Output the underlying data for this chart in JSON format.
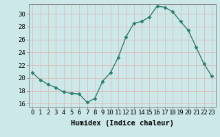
{
  "x": [
    0,
    1,
    2,
    3,
    4,
    5,
    6,
    7,
    8,
    9,
    10,
    11,
    12,
    13,
    14,
    15,
    16,
    17,
    18,
    19,
    20,
    21,
    22,
    23
  ],
  "y": [
    20.8,
    19.7,
    19.0,
    18.5,
    17.8,
    17.6,
    17.5,
    16.2,
    16.8,
    19.5,
    20.8,
    23.2,
    26.4,
    28.5,
    28.8,
    29.5,
    31.2,
    31.0,
    30.3,
    28.8,
    27.4,
    24.8,
    22.2,
    20.3
  ],
  "line_color": "#2e7d6e",
  "marker": "D",
  "markersize": 2.5,
  "linewidth": 1.0,
  "bg_color": "#cce8e8",
  "grid_color": "#ddbbbb",
  "xlabel": "Humidex (Indice chaleur)",
  "xlim": [
    -0.5,
    23.5
  ],
  "ylim": [
    15.5,
    31.5
  ],
  "yticks": [
    16,
    18,
    20,
    22,
    24,
    26,
    28,
    30
  ],
  "xticks": [
    0,
    1,
    2,
    3,
    4,
    5,
    6,
    7,
    8,
    9,
    10,
    11,
    12,
    13,
    14,
    15,
    16,
    17,
    18,
    19,
    20,
    21,
    22,
    23
  ],
  "xlabel_fontsize": 7.5,
  "tick_fontsize": 6.5
}
